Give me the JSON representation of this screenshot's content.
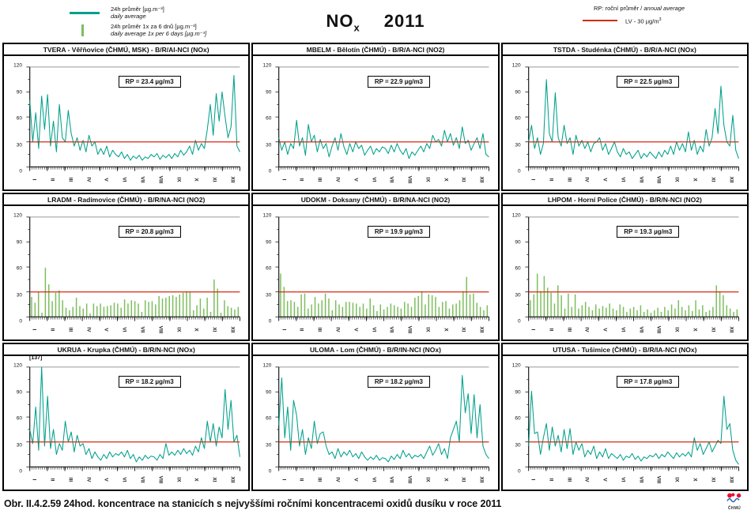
{
  "colors": {
    "teal": "#00A08C",
    "bar_green": "#7CBE5C",
    "lv_red": "#D42A10",
    "logo_red": "#E8112D",
    "logo_blue": "#2B6CB8"
  },
  "header": {
    "legend_daily": {
      "label_cz": "24h průměr [µg.m⁻³]",
      "label_en": "daily average"
    },
    "legend_6day": {
      "label_cz": "24h průměr 1x za 6 dnů  [µg.m⁻³]",
      "label_en": "daily average 1x per 6 days [µg.m⁻³]"
    },
    "title": {
      "compound": "NO",
      "subscript": "x",
      "year": "2011"
    },
    "right": {
      "rp_note": "RP: roční průměr /",
      "rp_note_en": "annual average",
      "lv_label": "LV  - 30 µg/m",
      "lv_sup": "3"
    }
  },
  "months": [
    "I",
    "II",
    "III",
    "IV",
    "V",
    "VI",
    "VII",
    "VIII",
    "IX",
    "X",
    "XI",
    "XII"
  ],
  "y_ticks": [
    0,
    30,
    60,
    90,
    120
  ],
  "ylim": [
    0,
    120
  ],
  "lv_line": 30,
  "caption": "Obr. II.4.2.59  24hod. koncentrace na stanicích s nejvyššími ročními koncentracemi oxidů dusíku v roce 2011",
  "logo_text": "ČHMÚ",
  "chart_data": [
    {
      "title": "TVERA -  Věřňovice (ČHMÚ, MSK) - B/R/AI-NCI (NOx)",
      "rp_label": "RP = 23.4 µg/m3",
      "rp_value": 23.4,
      "type": "line",
      "sampling": "daily, sampled ~every 5 days",
      "values": [
        80,
        30,
        65,
        22,
        85,
        45,
        87,
        25,
        55,
        18,
        75,
        35,
        30,
        68,
        40,
        25,
        35,
        20,
        32,
        18,
        38,
        25,
        30,
        15,
        22,
        15,
        25,
        12,
        20,
        15,
        12,
        18,
        10,
        15,
        8,
        13,
        10,
        14,
        8,
        12,
        10,
        15,
        12,
        16,
        9,
        14,
        11,
        15,
        10,
        16,
        12,
        20,
        14,
        18,
        25,
        15,
        32,
        20,
        28,
        22,
        45,
        75,
        38,
        88,
        55,
        90,
        60,
        35,
        48,
        110,
        25,
        18
      ]
    },
    {
      "title": "MBELM - Bělotín (ČHMÚ) - B/R/A-NCI (NO2)",
      "rp_label": "RP = 22.9 µg/m3",
      "rp_value": 22.9,
      "type": "line",
      "sampling": "daily, sampled ~every 5 days",
      "values": [
        35,
        20,
        30,
        15,
        28,
        22,
        56,
        25,
        35,
        14,
        51,
        30,
        38,
        18,
        33,
        22,
        28,
        12,
        25,
        35,
        20,
        40,
        24,
        15,
        28,
        18,
        30,
        22,
        26,
        14,
        20,
        25,
        15,
        22,
        18,
        24,
        22,
        16,
        26,
        18,
        28,
        20,
        15,
        22,
        10,
        18,
        14,
        20,
        25,
        18,
        28,
        22,
        38,
        30,
        33,
        25,
        44,
        30,
        40,
        26,
        35,
        22,
        48,
        28,
        32,
        20,
        28,
        35,
        22,
        40,
        15,
        12
      ]
    },
    {
      "title": "TSTDA - Studénka (ČHMÚ) - B/R/A-NCI (NOx)",
      "rp_label": "RP = 22.5 µg/m3",
      "rp_value": 22.5,
      "type": "line",
      "sampling": "daily, sampled ~every 5 days",
      "values": [
        30,
        50,
        22,
        35,
        15,
        28,
        105,
        40,
        30,
        89,
        35,
        25,
        50,
        28,
        35,
        15,
        38,
        25,
        32,
        22,
        30,
        18,
        28,
        30,
        35,
        20,
        28,
        15,
        22,
        30,
        18,
        12,
        22,
        15,
        18,
        10,
        15,
        20,
        10,
        16,
        12,
        18,
        14,
        10,
        18,
        12,
        20,
        15,
        25,
        15,
        30,
        20,
        28,
        18,
        42,
        20,
        32,
        15,
        25,
        18,
        45,
        25,
        35,
        70,
        40,
        97,
        50,
        30,
        25,
        62,
        20,
        10
      ]
    },
    {
      "title": "LRADM - Radimovice (ČHMÚ) - B/R/NA-NCI (NO2)",
      "rp_label": "RP = 20.8 µg/m3",
      "rp_value": 20.8,
      "type": "bar",
      "sampling": "1x per 6 days",
      "values": [
        24,
        17,
        30,
        5,
        59,
        39,
        19,
        29,
        32,
        20,
        11,
        8,
        12,
        23,
        13,
        10,
        16,
        4,
        16,
        13,
        16,
        12,
        13,
        14,
        17,
        16,
        11,
        21,
        16,
        20,
        19,
        16,
        6,
        20,
        18,
        19,
        15,
        25,
        22,
        23,
        25,
        26,
        24,
        27,
        29,
        31,
        30,
        8,
        14,
        22,
        10,
        23,
        6,
        45,
        34,
        5,
        20,
        13,
        11,
        9,
        12
      ]
    },
    {
      "title": "UDOKM - Doksany (ČHMÚ) - B/R/NA-NCI (NO2)",
      "rp_label": "RP = 19.9 µg/m3",
      "rp_value": 19.9,
      "type": "bar",
      "sampling": "1x per 6 days",
      "values": [
        52,
        36,
        19,
        20,
        18,
        12,
        27,
        28,
        10,
        15,
        24,
        16,
        20,
        28,
        22,
        8,
        20,
        15,
        12,
        18,
        18,
        17,
        16,
        12,
        16,
        10,
        22,
        14,
        7,
        15,
        9,
        12,
        16,
        14,
        12,
        10,
        18,
        16,
        12,
        23,
        25,
        31,
        15,
        27,
        26,
        24,
        12,
        18,
        19,
        10,
        15,
        16,
        20,
        31,
        48,
        27,
        28,
        17,
        12,
        8,
        14
      ]
    },
    {
      "title": "LHPOM - Horní Police (ČHMÚ) - B/R/N-NCI (NO2)",
      "rp_label": "RP = 19.3 µg/m3",
      "rp_value": 19.3,
      "type": "bar",
      "sampling": "1x per 6 days",
      "values": [
        20,
        27,
        52,
        31,
        49,
        35,
        29,
        16,
        38,
        26,
        10,
        28,
        12,
        27,
        10,
        14,
        18,
        12,
        8,
        15,
        10,
        13,
        11,
        16,
        10,
        8,
        15,
        12,
        6,
        10,
        12,
        8,
        14,
        6,
        9,
        5,
        8,
        11,
        6,
        12,
        8,
        15,
        10,
        20,
        12,
        8,
        14,
        7,
        20,
        9,
        14,
        6,
        8,
        12,
        38,
        31,
        26,
        14,
        10,
        6,
        9
      ]
    },
    {
      "title": "UKRUA - Krupka (ČHMÚ) - B/R/N-NCI (NOx)",
      "rp_label": "RP = 18.2 µg/m3",
      "rp_value": 18.2,
      "type": "line",
      "sampling": "daily, sampled ~every 5 days",
      "annotation": "[137]",
      "values": [
        45,
        28,
        72,
        20,
        137,
        25,
        85,
        22,
        45,
        15,
        28,
        20,
        55,
        30,
        42,
        18,
        38,
        25,
        28,
        15,
        22,
        10,
        18,
        12,
        8,
        15,
        10,
        18,
        12,
        16,
        14,
        18,
        12,
        20,
        10,
        15,
        6,
        12,
        8,
        14,
        10,
        13,
        12,
        8,
        15,
        10,
        28,
        14,
        18,
        14,
        20,
        15,
        22,
        16,
        20,
        14,
        25,
        18,
        35,
        22,
        55,
        30,
        52,
        25,
        48,
        35,
        93,
        45,
        80,
        30,
        38,
        12
      ]
    },
    {
      "title": "ULOMA - Lom (ČHMÚ) - B/R/IN-NCI (NOx)",
      "rp_label": "RP = 18.2 µg/m3",
      "rp_value": 18.2,
      "type": "line",
      "sampling": "daily, sampled ~every 5 days",
      "values": [
        50,
        107,
        35,
        72,
        20,
        80,
        62,
        25,
        45,
        15,
        35,
        22,
        55,
        28,
        40,
        42,
        25,
        15,
        18,
        10,
        22,
        12,
        18,
        14,
        20,
        12,
        16,
        10,
        18,
        12,
        8,
        12,
        9,
        14,
        8,
        11,
        10,
        6,
        13,
        9,
        15,
        10,
        20,
        12,
        16,
        10,
        14,
        12,
        15,
        10,
        18,
        25,
        14,
        20,
        28,
        15,
        22,
        10,
        35,
        45,
        55,
        30,
        110,
        65,
        88,
        40,
        87,
        35,
        75,
        25,
        15,
        10
      ]
    },
    {
      "title": "UTUSA - Tušimice (ČHMÚ) - B/R/IA-NCI (NOx)",
      "rp_label": "RP = 17.8 µg/m3",
      "rp_value": 17.8,
      "type": "line",
      "sampling": "daily, sampled ~every 5 days",
      "values": [
        25,
        91,
        40,
        42,
        15,
        35,
        52,
        20,
        48,
        25,
        38,
        18,
        45,
        22,
        46,
        15,
        30,
        20,
        28,
        12,
        20,
        15,
        25,
        10,
        18,
        12,
        22,
        10,
        16,
        13,
        10,
        15,
        8,
        13,
        11,
        16,
        9,
        13,
        7,
        12,
        10,
        14,
        12,
        16,
        10,
        15,
        12,
        18,
        14,
        10,
        17,
        12,
        16,
        13,
        18,
        12,
        35,
        20,
        28,
        15,
        22,
        30,
        18,
        25,
        32,
        28,
        85,
        45,
        52,
        20,
        8,
        3
      ]
    }
  ]
}
